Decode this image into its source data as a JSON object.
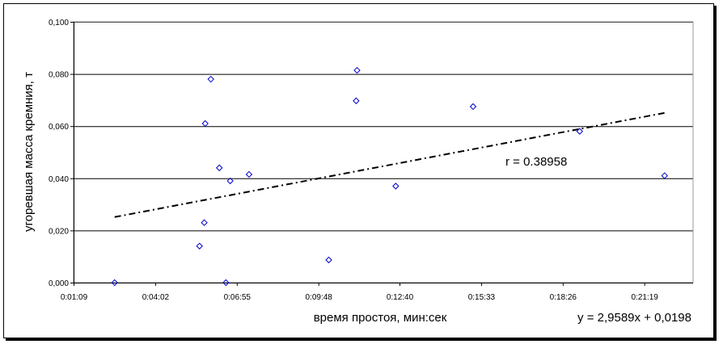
{
  "chart_data": {
    "type": "scatter",
    "title": "",
    "xlabel": "время простоя, мин:сек",
    "ylabel": "угоревшая масса кремния, т",
    "xlim": [
      "0:01:09",
      "0:23:02"
    ],
    "ylim": [
      0,
      0.1
    ],
    "x_ticks": [
      "0:01:09",
      "0:04:02",
      "0:06:55",
      "0:09:48",
      "0:12:40",
      "0:15:33",
      "0:18:26",
      "0:21:19"
    ],
    "y_ticks": [
      "0,000",
      "0,020",
      "0,040",
      "0,060",
      "0,080",
      "0,100"
    ],
    "grid": "horizontal",
    "marker": "diamond",
    "marker_color": "#0000cc",
    "points": [
      {
        "x": "0:02:36",
        "y": 0.0
      },
      {
        "x": "0:05:36",
        "y": 0.014
      },
      {
        "x": "0:05:46",
        "y": 0.023
      },
      {
        "x": "0:05:48",
        "y": 0.061
      },
      {
        "x": "0:06:00",
        "y": 0.078
      },
      {
        "x": "0:06:18",
        "y": 0.044
      },
      {
        "x": "0:06:32",
        "y": 0.0
      },
      {
        "x": "0:06:41",
        "y": 0.039
      },
      {
        "x": "0:07:21",
        "y": 0.0415
      },
      {
        "x": "0:10:10",
        "y": 0.0087
      },
      {
        "x": "0:11:08",
        "y": 0.0697
      },
      {
        "x": "0:11:10",
        "y": 0.0814
      },
      {
        "x": "0:12:32",
        "y": 0.037
      },
      {
        "x": "0:15:16",
        "y": 0.0675
      },
      {
        "x": "0:19:02",
        "y": 0.058
      },
      {
        "x": "0:22:02",
        "y": 0.041
      }
    ],
    "trendline": {
      "type": "linear",
      "slope": 2.9589,
      "intercept": 0.0198,
      "x_range": [
        "0:02:36",
        "0:22:02"
      ],
      "style": "dash-dot",
      "color": "#000000"
    },
    "annotations": {
      "r": "r = 0.38958",
      "equation": "y = 2,9589x + 0,0198"
    }
  }
}
